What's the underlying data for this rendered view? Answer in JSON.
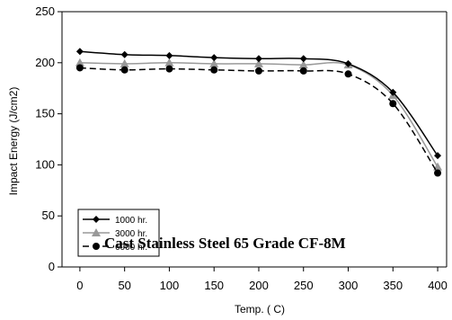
{
  "chart_data": {
    "type": "line",
    "xlabel": "Temp. ( C)",
    "ylabel": "Impact Energy (J/cm2)",
    "annotation": "Cast Stainless Steel 65 Grade  CF-8M",
    "xlim": [
      -20,
      410
    ],
    "ylim": [
      0,
      250
    ],
    "xticks": [
      0,
      50,
      100,
      150,
      200,
      250,
      300,
      350,
      400
    ],
    "yticks": [
      0,
      50,
      100,
      150,
      200,
      250
    ],
    "grid": false,
    "legend_position": "bottom-left",
    "series": [
      {
        "name": "1000 hr.",
        "marker": "diamond",
        "color": "#000000",
        "dash": "solid",
        "x": [
          0,
          50,
          100,
          150,
          200,
          250,
          300,
          350,
          400
        ],
        "y": [
          211,
          208,
          207,
          205,
          204,
          204,
          199,
          171,
          109
        ]
      },
      {
        "name": "3000 hr.",
        "marker": "triangle",
        "color": "#999999",
        "dash": "solid",
        "x": [
          0,
          50,
          100,
          150,
          200,
          250,
          300,
          350,
          400
        ],
        "y": [
          200,
          199,
          200,
          199,
          199,
          198,
          198,
          168,
          98
        ]
      },
      {
        "name": "6000 hr.",
        "marker": "circle",
        "color": "#000000",
        "dash": "dashed",
        "x": [
          0,
          50,
          100,
          150,
          200,
          250,
          300,
          350,
          400
        ],
        "y": [
          195,
          193,
          194,
          193,
          192,
          192,
          189,
          160,
          92
        ]
      }
    ]
  }
}
